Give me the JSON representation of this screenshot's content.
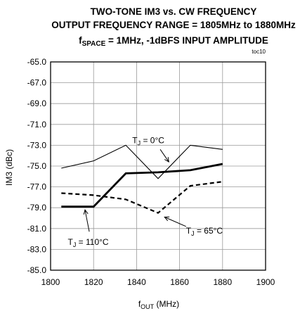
{
  "chart_data": {
    "type": "line",
    "title_lines": [
      "TWO-TONE IM3 vs. CW FREQUENCY",
      "OUTPUT FREQUENCY RANGE = 1805MHz to 1880MHz"
    ],
    "title_line3": {
      "f": "f",
      "space_sub": "SPACE",
      "rest": " = 1MHz, -1dBFS INPUT AMPLITUDE"
    },
    "figure_id": "toc10",
    "xlabel": {
      "main": "f",
      "sub": "OUT",
      "unit": " (MHz)"
    },
    "ylabel": "IM3 (dBc)",
    "xlim": [
      1800,
      1900
    ],
    "ylim": [
      -85.0,
      -65.0
    ],
    "xticks": [
      1800,
      1820,
      1840,
      1860,
      1880,
      1900
    ],
    "yticks": [
      -65.0,
      -67.0,
      -69.0,
      -71.0,
      -73.0,
      -75.0,
      -77.0,
      -79.0,
      -81.0,
      -83.0,
      -85.0
    ],
    "grid": true,
    "series": [
      {
        "name": "TJ = 0°C",
        "style": "thin",
        "x": [
          1805,
          1820,
          1835,
          1850,
          1865,
          1880
        ],
        "y": [
          -75.2,
          -74.5,
          -73.0,
          -76.2,
          -73.0,
          -73.4
        ]
      },
      {
        "name": "TJ = 110°C",
        "style": "thick",
        "x": [
          1805,
          1820,
          1835,
          1850,
          1865,
          1880
        ],
        "y": [
          -78.9,
          -78.9,
          -75.7,
          -75.6,
          -75.4,
          -74.8
        ]
      },
      {
        "name": "TJ = 65°C",
        "style": "dashed",
        "x": [
          1805,
          1820,
          1835,
          1850,
          1865,
          1880
        ],
        "y": [
          -77.6,
          -77.8,
          -78.2,
          -79.5,
          -76.9,
          -76.5
        ]
      }
    ],
    "annotations": [
      {
        "name": "annotation-tj-0",
        "t": "T",
        "sub": "J",
        "rest": " = 0°C",
        "text_at": [
          1838,
          -72.55
        ],
        "arrow_from": [
          1851,
          -73.4
        ],
        "arrow_to": [
          1855,
          -74.6
        ]
      },
      {
        "name": "annotation-tj-110",
        "t": "T",
        "sub": "J",
        "rest": " = 110°C",
        "text_at": [
          1808,
          -82.3
        ],
        "arrow_from": [
          1818,
          -81.3
        ],
        "arrow_to": [
          1816,
          -79.2
        ]
      },
      {
        "name": "annotation-tj-65",
        "t": "T",
        "sub": "J",
        "rest": " = 65°C",
        "text_at": [
          1863,
          -81.2
        ],
        "arrow_from": [
          1863,
          -80.8
        ],
        "arrow_to": [
          1853,
          -79.9
        ]
      }
    ]
  }
}
